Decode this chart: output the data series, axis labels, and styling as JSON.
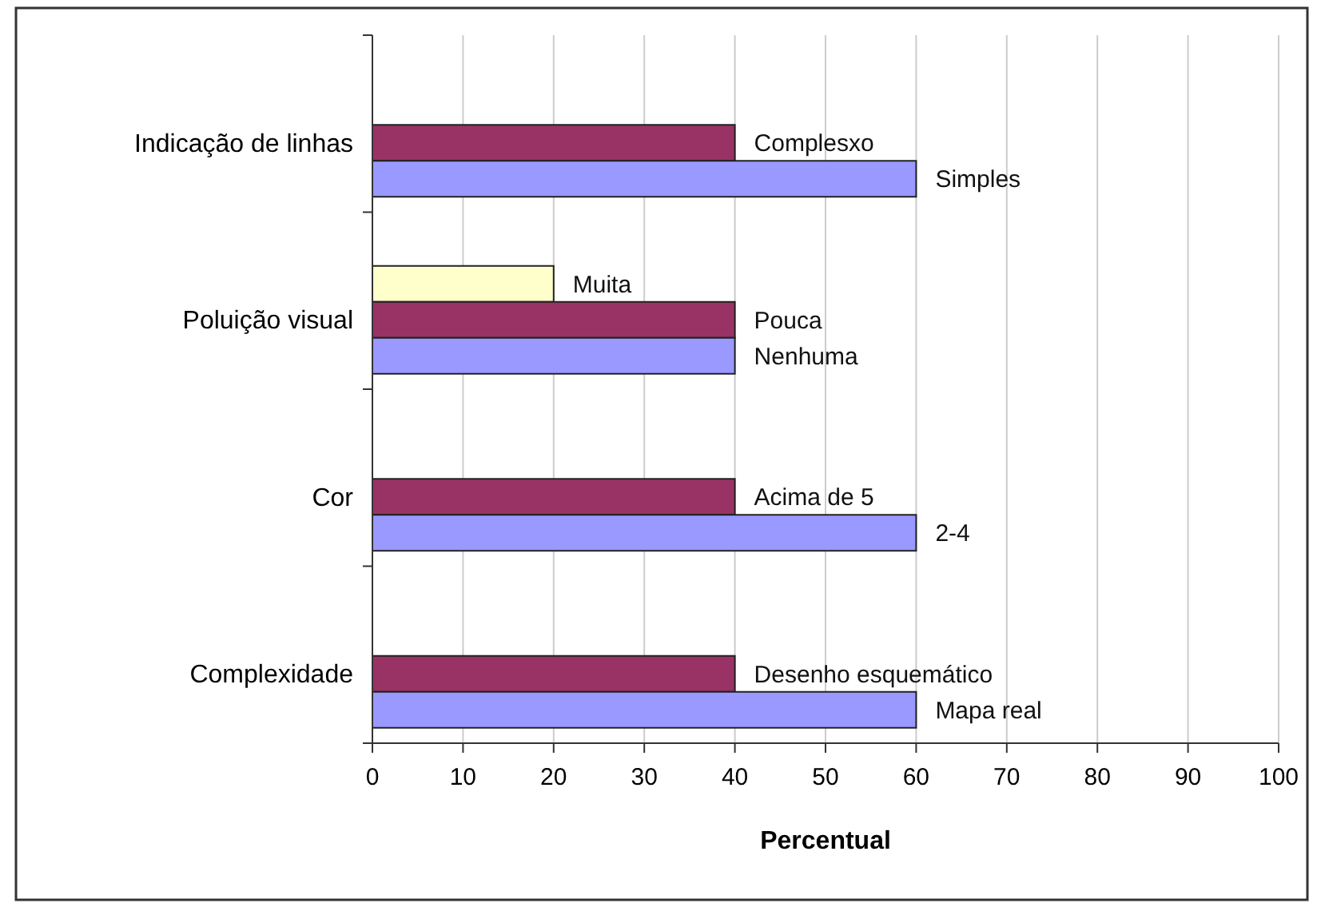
{
  "chart_data": {
    "type": "bar",
    "orientation": "horizontal",
    "xlabel": "Percentual",
    "categories": [
      "Indicação de linhas",
      "Poluição visual",
      "Cor",
      "Complexidade"
    ],
    "series": [
      {
        "color": "#ffffcc",
        "values": [
          null,
          20,
          null,
          null
        ],
        "value_labels": [
          null,
          "Muita",
          null,
          null
        ]
      },
      {
        "color": "#993366",
        "values": [
          40,
          40,
          40,
          40
        ],
        "value_labels": [
          "Complesxo",
          "Pouca",
          "Acima de 5",
          "Desenho esquemático"
        ]
      },
      {
        "color": "#9999ff",
        "values": [
          60,
          40,
          60,
          60
        ],
        "value_labels": [
          "Simples",
          "Nenhuma",
          "2-4",
          "Mapa real"
        ]
      }
    ],
    "xlim": [
      0,
      100
    ],
    "xticks": [
      0,
      10,
      20,
      30,
      40,
      50,
      60,
      70,
      80,
      90,
      100
    ],
    "grid": "x"
  }
}
